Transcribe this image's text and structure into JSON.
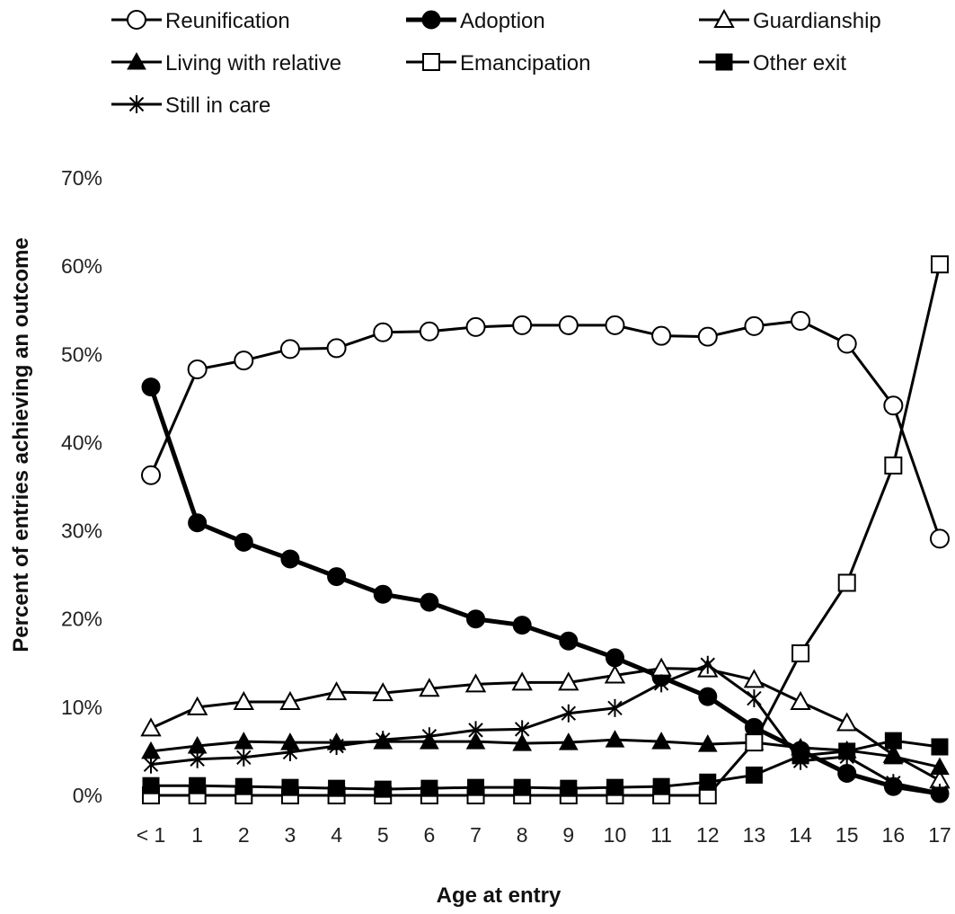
{
  "chart_data": {
    "type": "line",
    "xlabel": "Age at entry",
    "ylabel": "Percent of entries achieving an outcome",
    "x": [
      "< 1",
      "1",
      "2",
      "3",
      "4",
      "5",
      "6",
      "7",
      "8",
      "9",
      "10",
      "11",
      "12",
      "13",
      "14",
      "15",
      "16",
      "17"
    ],
    "y_ticks": [
      "0%",
      "10%",
      "20%",
      "30%",
      "40%",
      "50%",
      "60%",
      "70%"
    ],
    "ylim": [
      0,
      70
    ],
    "grid": false,
    "legend_position": "top",
    "series": [
      {
        "name": "Reunification",
        "marker": "circle-open",
        "stroke_weight": "normal",
        "values": [
          36.3,
          48.3,
          49.3,
          50.6,
          50.7,
          52.5,
          52.6,
          53.1,
          53.3,
          53.3,
          53.3,
          52.1,
          52.0,
          53.2,
          53.8,
          51.2,
          44.2,
          29.1
        ]
      },
      {
        "name": "Adoption",
        "marker": "circle-filled",
        "stroke_weight": "heavy",
        "values": [
          46.3,
          30.9,
          28.7,
          26.8,
          24.8,
          22.8,
          21.9,
          20.0,
          19.3,
          17.5,
          15.6,
          13.4,
          11.2,
          7.7,
          5.1,
          2.5,
          1.0,
          0.2
        ]
      },
      {
        "name": "Guardianship",
        "marker": "triangle-open",
        "stroke_weight": "normal",
        "values": [
          7.6,
          10.0,
          10.6,
          10.6,
          11.7,
          11.6,
          12.1,
          12.6,
          12.8,
          12.8,
          13.6,
          14.4,
          14.3,
          13.1,
          10.6,
          8.2,
          4.6,
          1.7
        ]
      },
      {
        "name": "Living with relative",
        "marker": "triangle-filled",
        "stroke_weight": "normal",
        "values": [
          5.0,
          5.6,
          6.1,
          6.0,
          6.0,
          6.1,
          6.1,
          6.1,
          5.9,
          6.0,
          6.3,
          6.1,
          5.8,
          6.0,
          5.4,
          5.1,
          4.4,
          3.2
        ]
      },
      {
        "name": "Emancipation",
        "marker": "square-open",
        "stroke_weight": "normal",
        "values": [
          0.0,
          0.0,
          0.0,
          0.0,
          0.0,
          0.0,
          0.0,
          0.0,
          0.0,
          0.0,
          0.0,
          0.0,
          0.0,
          6.0,
          16.1,
          24.1,
          37.4,
          60.2
        ]
      },
      {
        "name": "Other exit",
        "marker": "square-filled",
        "stroke_weight": "normal",
        "values": [
          1.1,
          1.1,
          1.0,
          0.9,
          0.8,
          0.7,
          0.8,
          0.9,
          0.9,
          0.8,
          0.9,
          1.0,
          1.5,
          2.3,
          4.5,
          5.0,
          6.2,
          5.5
        ]
      },
      {
        "name": "Still in care",
        "marker": "asterisk",
        "stroke_weight": "normal",
        "values": [
          3.5,
          4.1,
          4.3,
          4.9,
          5.6,
          6.3,
          6.7,
          7.4,
          7.5,
          9.3,
          9.9,
          12.7,
          14.8,
          11.0,
          3.9,
          4.4,
          1.4,
          0.3
        ]
      }
    ]
  }
}
